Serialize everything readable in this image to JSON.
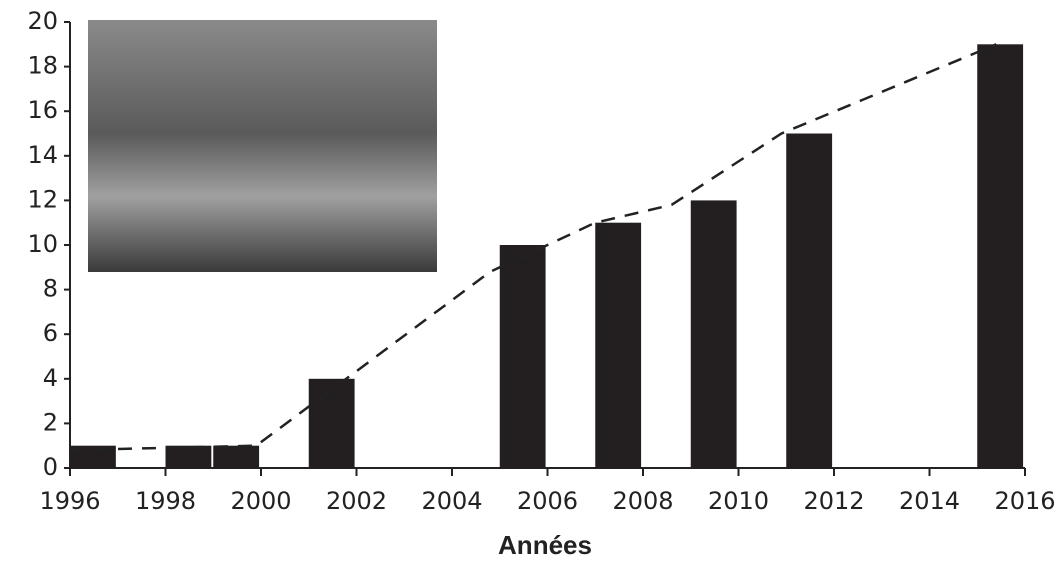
{
  "chart_data": {
    "type": "bar",
    "xlabel": "Années",
    "x": [
      1996,
      1998,
      1999,
      2001,
      2005,
      2007,
      2009,
      2011,
      2015
    ],
    "values": [
      1,
      1,
      1,
      4,
      10,
      11,
      12,
      15,
      19
    ],
    "color": "#231f20",
    "trend": {
      "x": [
        1996,
        1999.9,
        2004.8,
        2007,
        2008.6,
        2010.9,
        2015.4
      ],
      "values": [
        0.8,
        1,
        8.8,
        11,
        11.8,
        15,
        19
      ]
    },
    "xlim": [
      1996,
      2016
    ],
    "xticks": [
      1996,
      1998,
      2000,
      2002,
      2004,
      2006,
      2008,
      2010,
      2012,
      2014,
      2016
    ],
    "ylim": [
      0,
      20
    ],
    "yticks": [
      0,
      2,
      4,
      6,
      8,
      10,
      12,
      14,
      16,
      18,
      20
    ]
  }
}
